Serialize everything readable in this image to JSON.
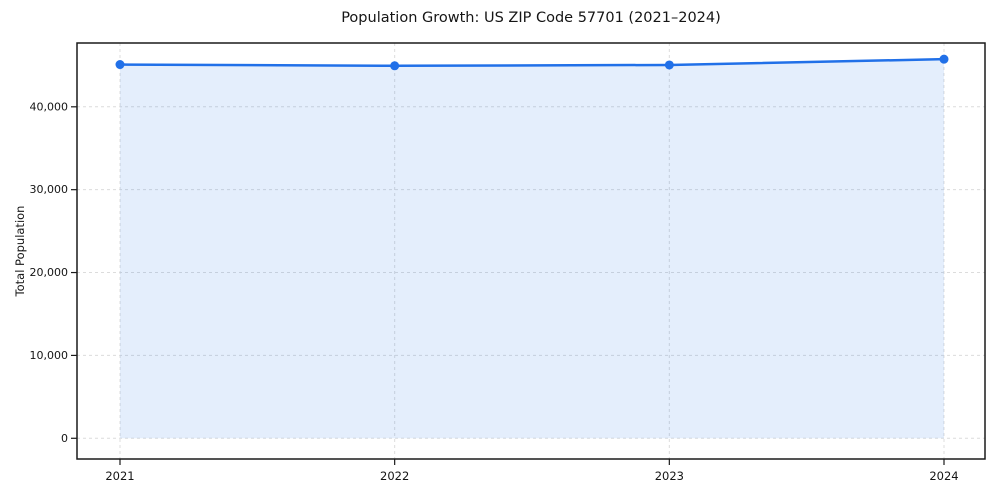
{
  "page": {
    "background_color": "#ffffff"
  },
  "chart_data": {
    "type": "line",
    "title": "Population Growth: US ZIP Code 57701 (2021–2024)",
    "xlabel": "",
    "ylabel": "Total Population",
    "categories": [
      "2021",
      "2022",
      "2023",
      "2024"
    ],
    "series": [
      {
        "name": "Total Population",
        "values": [
          45100,
          44950,
          45050,
          45750
        ]
      }
    ],
    "y_ticks": [
      0,
      10000,
      20000,
      30000,
      40000
    ],
    "y_tick_labels": [
      "0",
      "10,000",
      "20,000",
      "30,000",
      "40,000"
    ],
    "ylim": [
      -2500,
      47700
    ],
    "grid": true,
    "grid_style": "dashed",
    "legend": false,
    "area_fill": true,
    "colors": {
      "line": "#2170e8",
      "marker": "#2170e8",
      "area_opacity": 0.12,
      "gridline": "#dcdcdc",
      "spine": "#1a1a1a",
      "tick": "#1a1a1a",
      "text": "#151515"
    }
  }
}
